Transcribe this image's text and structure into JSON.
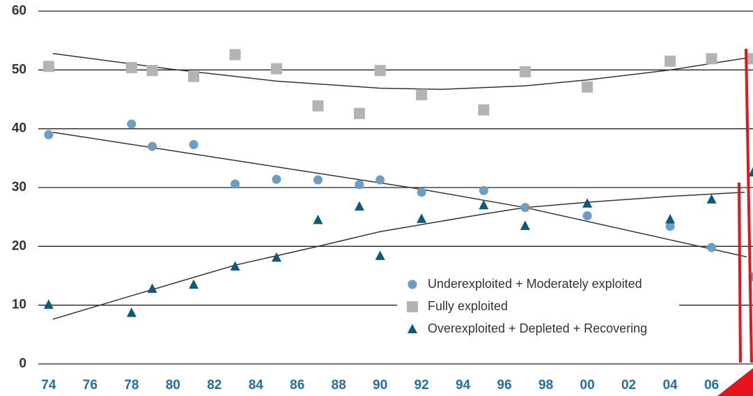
{
  "chart_data": {
    "type": "scatter",
    "xlim": [
      1973.5,
      2008
    ],
    "ylim": [
      0,
      60
    ],
    "yticks": [
      0,
      10,
      20,
      30,
      40,
      50,
      60
    ],
    "xticks": [
      {
        "value": 1974,
        "label": "74"
      },
      {
        "value": 1976,
        "label": "76"
      },
      {
        "value": 1978,
        "label": "78"
      },
      {
        "value": 1980,
        "label": "80"
      },
      {
        "value": 1982,
        "label": "82"
      },
      {
        "value": 1984,
        "label": "84"
      },
      {
        "value": 1986,
        "label": "86"
      },
      {
        "value": 1988,
        "label": "88"
      },
      {
        "value": 1990,
        "label": "90"
      },
      {
        "value": 1992,
        "label": "92"
      },
      {
        "value": 1994,
        "label": "94"
      },
      {
        "value": 1996,
        "label": "96"
      },
      {
        "value": 1998,
        "label": "98"
      },
      {
        "value": 2000,
        "label": "00"
      },
      {
        "value": 2002,
        "label": "02"
      },
      {
        "value": 2004,
        "label": "04"
      },
      {
        "value": 2006,
        "label": "06"
      }
    ],
    "grid": true,
    "x": [
      1974,
      1978,
      1979,
      1981,
      1983,
      1985,
      1987,
      1989,
      1990,
      1992,
      1995,
      1997,
      2000,
      2004,
      2006,
      2008
    ],
    "series": [
      {
        "name": "Underexploited + Moderately exploited",
        "color": "#6a9ec4",
        "marker": "circle",
        "values": [
          39,
          40.8,
          37,
          37.3,
          30.6,
          31.4,
          31.3,
          30.5,
          31.3,
          29.2,
          29.5,
          26.6,
          25.2,
          23.4,
          19.8,
          14.8
        ],
        "trend": {
          "x": [
            1974.2,
            1992,
            1997,
            2007.7
          ],
          "values": [
            39.4,
            29.7,
            26.6,
            18.2
          ]
        }
      },
      {
        "name": "Fully exploited",
        "color": "#b3b3b3",
        "marker": "square",
        "values": [
          50.6,
          50.4,
          49.9,
          48.9,
          52.6,
          50.2,
          43.9,
          42.6,
          49.9,
          45.8,
          43.2,
          49.7,
          47.1,
          51.5,
          51.9,
          51.9
        ],
        "trend": {
          "x": [
            1974.2,
            1980,
            1985,
            1990,
            1993,
            1997,
            2000,
            2004,
            2008
          ],
          "values": [
            52.8,
            50.1,
            48.1,
            46.9,
            46.7,
            47.3,
            48.3,
            50.0,
            52.2
          ]
        }
      },
      {
        "name": "Overexploited + Depleted + Recovering",
        "color": "#0e5a7e",
        "marker": "triangle",
        "values": [
          10.1,
          8.7,
          12.8,
          13.5,
          16.6,
          18.1,
          24.5,
          26.8,
          18.4,
          24.7,
          27.0,
          23.5,
          27.3,
          24.6,
          28.0,
          32.6
        ],
        "trend": {
          "x": [
            1974.2,
            1978,
            1983,
            1987,
            1990,
            1995,
            1997,
            2000,
            2004,
            2007.6
          ],
          "values": [
            7.6,
            11.6,
            16.8,
            20.0,
            22.5,
            25.5,
            26.6,
            27.5,
            28.5,
            29.2
          ]
        }
      }
    ]
  }
}
